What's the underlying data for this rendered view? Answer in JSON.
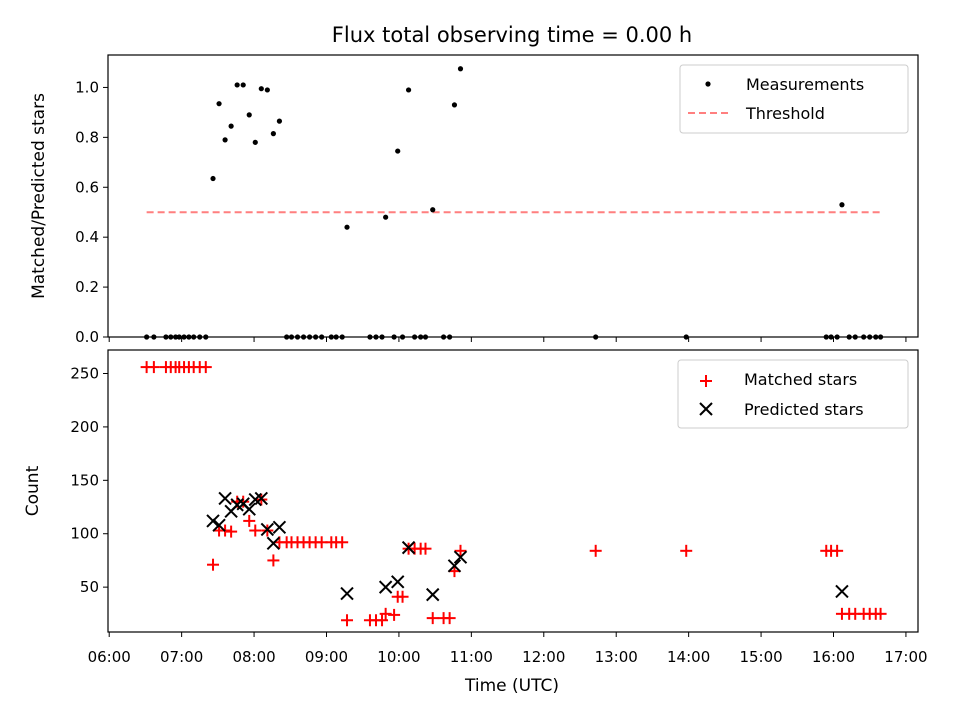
{
  "title": "Flux total observing time = 0.00 h",
  "chart_data": [
    {
      "type": "scatter",
      "ylabel": "Matched/Predicted stars",
      "xlim": [
        "05:59",
        "17:10"
      ],
      "ylim": [
        0,
        1.13
      ],
      "yticks": [
        "0.0",
        "0.2",
        "0.4",
        "0.6",
        "0.8",
        "1.0"
      ],
      "legend_position": "top-right",
      "series": [
        {
          "name": "Measurements",
          "kind": "points",
          "color": "#000000",
          "points": [
            [
              "06:31",
              0
            ],
            [
              "06:37",
              0
            ],
            [
              "06:47",
              0
            ],
            [
              "06:51",
              0
            ],
            [
              "06:55",
              0
            ],
            [
              "06:58",
              0
            ],
            [
              "07:02",
              0
            ],
            [
              "07:06",
              0
            ],
            [
              "07:10",
              0
            ],
            [
              "07:15",
              0
            ],
            [
              "07:20",
              0
            ],
            [
              "07:26",
              0.635
            ],
            [
              "07:31",
              0.935
            ],
            [
              "07:36",
              0.79
            ],
            [
              "07:41",
              0.845
            ],
            [
              "07:46",
              1.01
            ],
            [
              "07:51",
              1.01
            ],
            [
              "07:56",
              0.89
            ],
            [
              "08:01",
              0.78
            ],
            [
              "08:06",
              0.995
            ],
            [
              "08:11",
              0.99
            ],
            [
              "08:16",
              0.815
            ],
            [
              "08:21",
              0.865
            ],
            [
              "08:27",
              0
            ],
            [
              "08:31",
              0
            ],
            [
              "08:36",
              0
            ],
            [
              "08:41",
              0
            ],
            [
              "08:46",
              0
            ],
            [
              "08:51",
              0
            ],
            [
              "08:56",
              0
            ],
            [
              "09:04",
              0
            ],
            [
              "09:08",
              0
            ],
            [
              "09:13",
              0
            ],
            [
              "09:17",
              0.44
            ],
            [
              "09:36",
              0
            ],
            [
              "09:41",
              0
            ],
            [
              "09:46",
              0
            ],
            [
              "09:49",
              0.48
            ],
            [
              "09:56",
              0
            ],
            [
              "09:59",
              0.745
            ],
            [
              "10:03",
              0
            ],
            [
              "10:08",
              0.99
            ],
            [
              "10:13",
              0
            ],
            [
              "10:18",
              0
            ],
            [
              "10:22",
              0
            ],
            [
              "10:28",
              0.51
            ],
            [
              "10:37",
              0
            ],
            [
              "10:42",
              0
            ],
            [
              "10:46",
              0.93
            ],
            [
              "10:51",
              1.075
            ],
            [
              "12:43",
              0
            ],
            [
              "13:58",
              0
            ],
            [
              "15:54",
              0
            ],
            [
              "15:58",
              0
            ],
            [
              "16:03",
              0
            ],
            [
              "16:07",
              0.53
            ],
            [
              "16:13",
              0
            ],
            [
              "16:18",
              0
            ],
            [
              "16:25",
              0
            ],
            [
              "16:30",
              0
            ],
            [
              "16:35",
              0
            ],
            [
              "16:39",
              0
            ]
          ]
        },
        {
          "name": "Threshold",
          "kind": "dashed-line",
          "color": "#ff7f7f",
          "points": [
            [
              "06:31",
              0.5
            ],
            [
              "16:39",
              0.5
            ]
          ]
        }
      ]
    },
    {
      "type": "scatter",
      "xlabel": "Time (UTC)",
      "ylabel": "Count",
      "xlim": [
        "05:59",
        "17:10"
      ],
      "ylim": [
        8,
        272
      ],
      "yticks": [
        "50",
        "100",
        "150",
        "200",
        "250"
      ],
      "xticks": [
        "06:00",
        "07:00",
        "08:00",
        "09:00",
        "10:00",
        "11:00",
        "12:00",
        "13:00",
        "14:00",
        "15:00",
        "16:00",
        "17:00"
      ],
      "legend_position": "top-right",
      "series": [
        {
          "name": "Matched stars",
          "marker": "plus",
          "color": "#ff0000",
          "points": [
            [
              "06:31",
              256
            ],
            [
              "06:37",
              256
            ],
            [
              "06:47",
              256
            ],
            [
              "06:51",
              256
            ],
            [
              "06:55",
              256
            ],
            [
              "06:58",
              256
            ],
            [
              "07:02",
              256
            ],
            [
              "07:06",
              256
            ],
            [
              "07:10",
              256
            ],
            [
              "07:15",
              256
            ],
            [
              "07:20",
              256
            ],
            [
              "07:26",
              71
            ],
            [
              "07:31",
              103
            ],
            [
              "07:36",
              103
            ],
            [
              "07:41",
              102
            ],
            [
              "07:46",
              130
            ],
            [
              "07:51",
              130
            ],
            [
              "07:56",
              112
            ],
            [
              "08:01",
              103
            ],
            [
              "08:06",
              132
            ],
            [
              "08:11",
              103
            ],
            [
              "08:16",
              75
            ],
            [
              "08:21",
              92
            ],
            [
              "08:27",
              92
            ],
            [
              "08:31",
              92
            ],
            [
              "08:36",
              92
            ],
            [
              "08:41",
              92
            ],
            [
              "08:46",
              92
            ],
            [
              "08:51",
              92
            ],
            [
              "08:56",
              92
            ],
            [
              "09:04",
              92
            ],
            [
              "09:08",
              92
            ],
            [
              "09:13",
              92
            ],
            [
              "09:17",
              19
            ],
            [
              "09:36",
              19
            ],
            [
              "09:41",
              19
            ],
            [
              "09:46",
              19
            ],
            [
              "09:49",
              25
            ],
            [
              "09:56",
              24
            ],
            [
              "09:59",
              41
            ],
            [
              "10:03",
              41
            ],
            [
              "10:08",
              86
            ],
            [
              "10:13",
              86
            ],
            [
              "10:18",
              86
            ],
            [
              "10:22",
              86
            ],
            [
              "10:28",
              21
            ],
            [
              "10:37",
              21
            ],
            [
              "10:42",
              21
            ],
            [
              "10:46",
              65
            ],
            [
              "10:51",
              84
            ],
            [
              "12:43",
              84
            ],
            [
              "13:58",
              84
            ],
            [
              "15:54",
              84
            ],
            [
              "15:58",
              84
            ],
            [
              "16:03",
              84
            ],
            [
              "16:07",
              25
            ],
            [
              "16:13",
              25
            ],
            [
              "16:18",
              25
            ],
            [
              "16:25",
              25
            ],
            [
              "16:30",
              25
            ],
            [
              "16:35",
              25
            ],
            [
              "16:39",
              25
            ]
          ]
        },
        {
          "name": "Predicted stars",
          "marker": "x",
          "color": "#000000",
          "points": [
            [
              "07:26",
              112
            ],
            [
              "07:31",
              108
            ],
            [
              "07:36",
              133
            ],
            [
              "07:41",
              121
            ],
            [
              "07:46",
              127
            ],
            [
              "07:51",
              128
            ],
            [
              "07:56",
              123
            ],
            [
              "08:01",
              132
            ],
            [
              "08:06",
              133
            ],
            [
              "08:11",
              104
            ],
            [
              "08:16",
              91
            ],
            [
              "08:21",
              106
            ],
            [
              "09:17",
              44
            ],
            [
              "09:49",
              50
            ],
            [
              "09:59",
              55
            ],
            [
              "10:08",
              87
            ],
            [
              "10:28",
              43
            ],
            [
              "10:46",
              70
            ],
            [
              "10:51",
              78
            ],
            [
              "16:07",
              46
            ]
          ]
        }
      ]
    }
  ]
}
